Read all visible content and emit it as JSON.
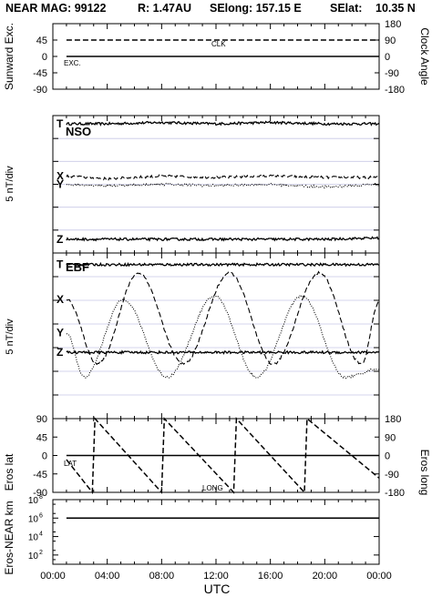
{
  "header": {
    "title": "NEAR MAG: 99122",
    "range": "R: 1.47AU",
    "selong": "SElong: 157.15 E",
    "selat": "SElat:",
    "selat_value": "10.35 N"
  },
  "xaxis": {
    "label": "UTC",
    "ticks": [
      "00:00",
      "04:00",
      "08:00",
      "12:00",
      "16:00",
      "20:00",
      "00:00"
    ]
  },
  "colors": {
    "axis": "#000000",
    "grid": "#c8c8e6",
    "trace": "#000000"
  },
  "chart_data": [
    {
      "type": "line",
      "panel": "sunward-excursion-clock-angle",
      "ylabel_left": "Sunward Exc.",
      "ylabel_right": "Clock Angle",
      "left_ticks": [
        "45",
        "0",
        "-45",
        "-90"
      ],
      "right_ticks": [
        "180",
        "90",
        "0",
        "-90",
        "-180"
      ],
      "ylim_left": [
        -90,
        90
      ],
      "ylim_right": [
        -180,
        180
      ],
      "series": [
        {
          "name": "CLK",
          "style": "dashed",
          "axis": "right",
          "x": [
            1.0,
            24.0
          ],
          "y": [
            90,
            90
          ]
        },
        {
          "name": "EXC.",
          "style": "solid",
          "axis": "left",
          "x": [
            1.0,
            24.0
          ],
          "y": [
            0,
            0
          ]
        }
      ]
    },
    {
      "type": "line",
      "panel": "nso-field-components",
      "label": "NSO",
      "ylabel": "5 nT/div",
      "grid": true,
      "series": [
        {
          "name": "T",
          "style": "solid",
          "x": [
            1,
            4,
            8,
            12,
            16,
            20,
            24
          ],
          "y": [
            0.94,
            0.94,
            0.95,
            0.94,
            0.95,
            0.94,
            0.94
          ]
        },
        {
          "name": "X",
          "style": "dashed",
          "x": [
            1,
            4,
            8,
            12,
            16,
            20,
            24
          ],
          "y": [
            0.56,
            0.54,
            0.56,
            0.55,
            0.56,
            0.55,
            0.55
          ]
        },
        {
          "name": "Y",
          "style": "dotted",
          "x": [
            1,
            4,
            8,
            12,
            16,
            20,
            24
          ],
          "y": [
            0.5,
            0.49,
            0.5,
            0.49,
            0.5,
            0.48,
            0.5
          ]
        },
        {
          "name": "Z",
          "style": "solid",
          "x": [
            1,
            4,
            8,
            12,
            16,
            20,
            24
          ],
          "y": [
            0.1,
            0.1,
            0.1,
            0.1,
            0.1,
            0.1,
            0.11
          ]
        }
      ]
    },
    {
      "type": "line",
      "panel": "ebf-field-components",
      "label": "EBF",
      "ylabel": "5 nT/div",
      "grid": true,
      "series": [
        {
          "name": "T",
          "style": "solid",
          "x": [
            1,
            4,
            8,
            12,
            16,
            20,
            24
          ],
          "y": [
            0.93,
            0.93,
            0.93,
            0.93,
            0.93,
            0.93,
            0.93
          ]
        },
        {
          "name": "X",
          "style": "dashed",
          "x": [
            1.0,
            3.3,
            6.3,
            9.6,
            13.0,
            16.2,
            19.6,
            22.7,
            24.0
          ],
          "y": [
            0.72,
            0.33,
            0.88,
            0.33,
            0.88,
            0.33,
            0.88,
            0.33,
            0.7
          ]
        },
        {
          "name": "Y",
          "style": "dotted",
          "x": [
            1.0,
            2.3,
            5.2,
            8.4,
            11.9,
            15.0,
            18.3,
            21.5,
            24.0
          ],
          "y": [
            0.52,
            0.25,
            0.72,
            0.25,
            0.74,
            0.25,
            0.74,
            0.25,
            0.3
          ]
        },
        {
          "name": "Z",
          "style": "solid",
          "x": [
            1,
            4,
            8,
            12,
            16,
            20,
            24
          ],
          "y": [
            0.4,
            0.4,
            0.4,
            0.4,
            0.4,
            0.4,
            0.4
          ]
        }
      ]
    },
    {
      "type": "line",
      "panel": "eros-lat-long",
      "ylabel_left": "Eros lat",
      "ylabel_right": "Eros long",
      "left_ticks": [
        "90",
        "45",
        "0",
        "-45",
        "-90"
      ],
      "right_ticks": [
        "180",
        "90",
        "0",
        "-90",
        "-180"
      ],
      "ylim_left": [
        -90,
        90
      ],
      "ylim_right": [
        -180,
        180
      ],
      "series": [
        {
          "name": "LAT",
          "style": "solid",
          "axis": "left",
          "x": [
            1.0,
            24.0
          ],
          "y": [
            0,
            0
          ]
        },
        {
          "name": "LONG",
          "style": "dashed",
          "axis": "right",
          "x": [
            1.0,
            2.9,
            3.1,
            8.0,
            8.2,
            13.3,
            13.5,
            18.5,
            18.7,
            24.0
          ],
          "y": [
            -20,
            -180,
            180,
            -180,
            180,
            -180,
            180,
            -180,
            180,
            -110
          ]
        }
      ]
    },
    {
      "type": "line",
      "panel": "eros-near-distance",
      "ylabel": "Eros-NEAR km",
      "scale": "log",
      "ylim": [
        10,
        100000000
      ],
      "ticks": [
        "10^8",
        "10^6",
        "10^4",
        "10^2"
      ],
      "series": [
        {
          "name": "",
          "style": "solid",
          "x": [
            1.0,
            24.0
          ],
          "y": [
            1000000,
            1000000
          ]
        }
      ]
    }
  ]
}
